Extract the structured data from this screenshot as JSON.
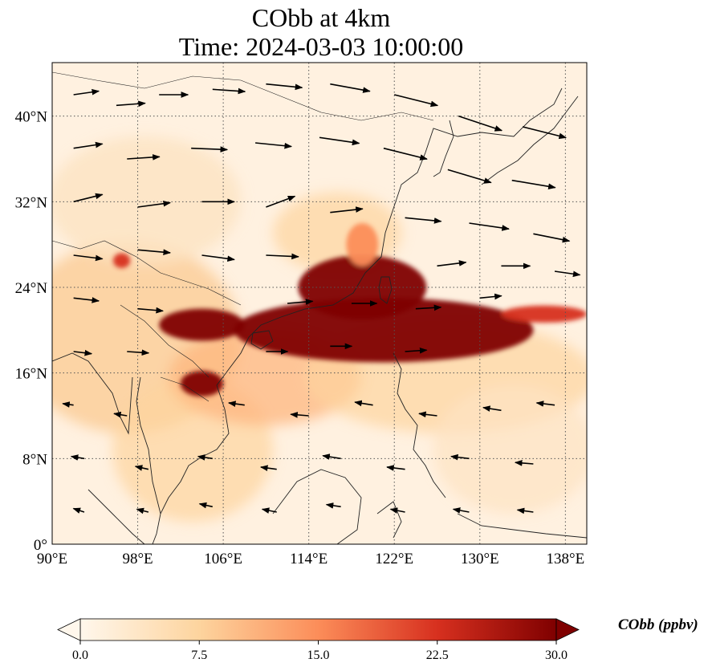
{
  "title": {
    "line1": "CObb at 4km",
    "line2": "Time: 2024-03-03 10:00:00"
  },
  "map": {
    "projection": "PlateCarree",
    "lon_range": [
      90,
      140
    ],
    "lat_range": [
      0,
      45
    ],
    "gridlines": "dotted",
    "coastlines": true,
    "lon_ticks": [
      "90°E",
      "98°E",
      "106°E",
      "114°E",
      "122°E",
      "130°E",
      "138°E"
    ],
    "lat_ticks": [
      "0°",
      "8°N",
      "16°N",
      "24°N",
      "32°N",
      "40°N"
    ],
    "colormap": "OrRd",
    "colors": [
      "#fff7ec",
      "#fdd49e",
      "#fc8d59",
      "#d7301f",
      "#7f0000"
    ],
    "plume_regions": [
      {
        "lon": 121,
        "lat": 20,
        "lon_extent": 14,
        "lat_extent": 3,
        "value": 30
      },
      {
        "lon": 119,
        "lat": 24,
        "lon_extent": 6,
        "lat_extent": 3,
        "value": 30
      },
      {
        "lon": 104,
        "lat": 20.5,
        "lon_extent": 4,
        "lat_extent": 1.5,
        "value": 30
      },
      {
        "lon": 104,
        "lat": 15,
        "lon_extent": 2,
        "lat_extent": 1.2,
        "value": 30
      },
      {
        "lon": 136,
        "lat": 21.5,
        "lon_extent": 4,
        "lat_extent": 0.8,
        "value": 25
      },
      {
        "lon": 96.5,
        "lat": 26.5,
        "lon_extent": 0.8,
        "lat_extent": 0.7,
        "value": 22
      },
      {
        "lon": 119,
        "lat": 28,
        "lon_extent": 1.5,
        "lat_extent": 2,
        "value": 18
      }
    ]
  },
  "colorbar": {
    "label": "CObb (ppbv)",
    "ticks": [
      "0.0",
      "7.5",
      "15.0",
      "22.5",
      "30.0"
    ],
    "min": 0,
    "max": 30,
    "extend": "both"
  },
  "wind": {
    "description": "Westerlies north of ~20°N, easterly trades to the south",
    "vectors": [
      {
        "lon": 92,
        "lat": 42,
        "u": 3.5,
        "v": 0.5
      },
      {
        "lon": 96,
        "lat": 41,
        "u": 4,
        "v": 0.3
      },
      {
        "lon": 100,
        "lat": 42,
        "u": 4,
        "v": 0
      },
      {
        "lon": 105,
        "lat": 42.5,
        "u": 4.5,
        "v": -0.3
      },
      {
        "lon": 110,
        "lat": 43,
        "u": 5,
        "v": -0.5
      },
      {
        "lon": 116,
        "lat": 43,
        "u": 5.5,
        "v": -1
      },
      {
        "lon": 122,
        "lat": 42,
        "u": 6,
        "v": -1.5
      },
      {
        "lon": 128,
        "lat": 40,
        "u": 6,
        "v": -2
      },
      {
        "lon": 134,
        "lat": 39,
        "u": 6,
        "v": -1.5
      },
      {
        "lon": 92,
        "lat": 37,
        "u": 4,
        "v": 0.6
      },
      {
        "lon": 97,
        "lat": 36,
        "u": 4.5,
        "v": 0.3
      },
      {
        "lon": 103,
        "lat": 37,
        "u": 5,
        "v": -0.2
      },
      {
        "lon": 109,
        "lat": 37.5,
        "u": 5,
        "v": -0.5
      },
      {
        "lon": 115,
        "lat": 38,
        "u": 5.5,
        "v": -0.8
      },
      {
        "lon": 121,
        "lat": 37,
        "u": 6,
        "v": -1.5
      },
      {
        "lon": 127,
        "lat": 35,
        "u": 6,
        "v": -1.8
      },
      {
        "lon": 133,
        "lat": 34,
        "u": 6,
        "v": -1
      },
      {
        "lon": 92,
        "lat": 32,
        "u": 4,
        "v": 1
      },
      {
        "lon": 98,
        "lat": 31.5,
        "u": 4.5,
        "v": 0.6
      },
      {
        "lon": 104,
        "lat": 32,
        "u": 4.5,
        "v": 0
      },
      {
        "lon": 110,
        "lat": 31.5,
        "u": 4,
        "v": 1.5
      },
      {
        "lon": 116,
        "lat": 31,
        "u": 4.5,
        "v": 0.5
      },
      {
        "lon": 123,
        "lat": 30.5,
        "u": 5,
        "v": -0.5
      },
      {
        "lon": 129,
        "lat": 30,
        "u": 5.5,
        "v": -0.8
      },
      {
        "lon": 135,
        "lat": 29,
        "u": 5,
        "v": -1
      },
      {
        "lon": 92,
        "lat": 27,
        "u": 4,
        "v": -0.5
      },
      {
        "lon": 98,
        "lat": 27.5,
        "u": 4.5,
        "v": -0.4
      },
      {
        "lon": 104,
        "lat": 27,
        "u": 4.5,
        "v": -0.6
      },
      {
        "lon": 110,
        "lat": 27,
        "u": 4.5,
        "v": -0.2
      },
      {
        "lon": 126,
        "lat": 26,
        "u": 4,
        "v": 0.5
      },
      {
        "lon": 132,
        "lat": 26,
        "u": 4,
        "v": 0
      },
      {
        "lon": 137,
        "lat": 25.5,
        "u": 3.5,
        "v": -0.5
      },
      {
        "lon": 92,
        "lat": 23,
        "u": 3.5,
        "v": -0.4
      },
      {
        "lon": 98,
        "lat": 22,
        "u": 3.5,
        "v": -0.3
      },
      {
        "lon": 112,
        "lat": 22.5,
        "u": 3.5,
        "v": 0.3
      },
      {
        "lon": 118,
        "lat": 22.5,
        "u": 3.5,
        "v": 0
      },
      {
        "lon": 124,
        "lat": 22,
        "u": 3.5,
        "v": 0.2
      },
      {
        "lon": 130,
        "lat": 23,
        "u": 3,
        "v": 0.3
      },
      {
        "lon": 92,
        "lat": 18,
        "u": 2.5,
        "v": -0.3
      },
      {
        "lon": 97,
        "lat": 18,
        "u": 3,
        "v": -0.2
      },
      {
        "lon": 110,
        "lat": 18,
        "u": 3,
        "v": 0
      },
      {
        "lon": 116,
        "lat": 18.5,
        "u": 3,
        "v": 0
      },
      {
        "lon": 123,
        "lat": 18,
        "u": 3,
        "v": 0.2
      },
      {
        "lon": 92,
        "lat": 13,
        "u": -1.5,
        "v": 0.2
      },
      {
        "lon": 97,
        "lat": 12,
        "u": -1.8,
        "v": 0.3
      },
      {
        "lon": 108,
        "lat": 13,
        "u": -2.2,
        "v": 0.3
      },
      {
        "lon": 114,
        "lat": 12,
        "u": -2.5,
        "v": 0.2
      },
      {
        "lon": 120,
        "lat": 13,
        "u": -2.5,
        "v": 0.4
      },
      {
        "lon": 126,
        "lat": 12,
        "u": -2.5,
        "v": 0.3
      },
      {
        "lon": 132,
        "lat": 12.5,
        "u": -2.5,
        "v": 0.4
      },
      {
        "lon": 137,
        "lat": 13,
        "u": -2.5,
        "v": 0.3
      },
      {
        "lon": 93,
        "lat": 8,
        "u": -1.8,
        "v": 0.3
      },
      {
        "lon": 99,
        "lat": 7,
        "u": -1.8,
        "v": 0.4
      },
      {
        "lon": 105,
        "lat": 8,
        "u": -2,
        "v": 0.3
      },
      {
        "lon": 111,
        "lat": 7,
        "u": -2.2,
        "v": 0.3
      },
      {
        "lon": 117,
        "lat": 8,
        "u": -2.5,
        "v": 0.4
      },
      {
        "lon": 123,
        "lat": 7,
        "u": -2.5,
        "v": 0.3
      },
      {
        "lon": 129,
        "lat": 8,
        "u": -2.5,
        "v": 0.3
      },
      {
        "lon": 135,
        "lat": 7.5,
        "u": -2.5,
        "v": 0.2
      },
      {
        "lon": 93,
        "lat": 3,
        "u": -1.5,
        "v": 0.5
      },
      {
        "lon": 99,
        "lat": 3,
        "u": -1.6,
        "v": 0.4
      },
      {
        "lon": 105,
        "lat": 3.5,
        "u": -1.8,
        "v": 0.4
      },
      {
        "lon": 111,
        "lat": 3,
        "u": -2,
        "v": 0.4
      },
      {
        "lon": 117,
        "lat": 3.5,
        "u": -2,
        "v": 0.3
      },
      {
        "lon": 123,
        "lat": 3,
        "u": -2,
        "v": 0.4
      },
      {
        "lon": 129,
        "lat": 3,
        "u": -2.2,
        "v": 0.4
      },
      {
        "lon": 135,
        "lat": 3,
        "u": -2.2,
        "v": 0.3
      }
    ]
  }
}
